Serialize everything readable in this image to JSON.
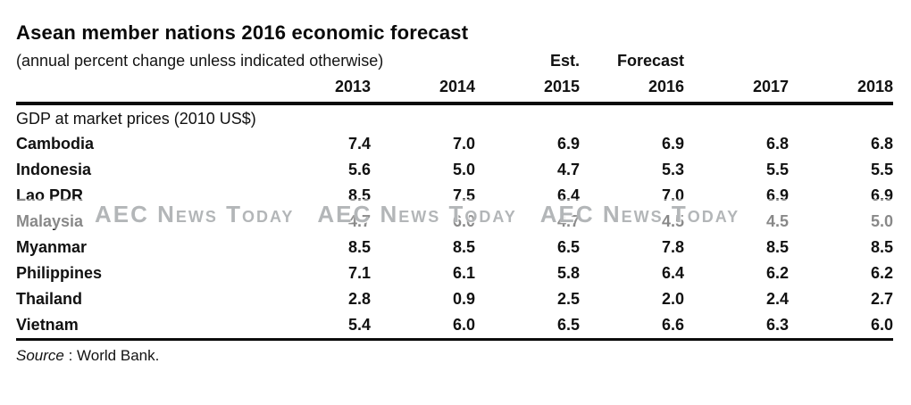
{
  "title": "Asean member nations 2016 economic forecast",
  "subtitle": "(annual percent change unless indicated otherwise)",
  "table": {
    "est_label": "Est.",
    "forecast_label": "Forecast",
    "years": [
      "2013",
      "2014",
      "2015",
      "2016",
      "2017",
      "2018"
    ],
    "section_label": "GDP at market prices (2010 US$)",
    "rows": [
      {
        "country": "Cambodia",
        "values": [
          "7.4",
          "7.0",
          "6.9",
          "6.9",
          "6.8",
          "6.8"
        ]
      },
      {
        "country": "Indonesia",
        "values": [
          "5.6",
          "5.0",
          "4.7",
          "5.3",
          "5.5",
          "5.5"
        ]
      },
      {
        "country": "Lao PDR",
        "values": [
          "8.5",
          "7.5",
          "6.4",
          "7.0",
          "6.9",
          "6.9"
        ]
      },
      {
        "country": "Malaysia",
        "values": [
          "4.7",
          "6.0",
          "4.7",
          "4.5",
          "4.5",
          "5.0"
        ]
      },
      {
        "country": "Myanmar",
        "values": [
          "8.5",
          "8.5",
          "6.5",
          "7.8",
          "8.5",
          "8.5"
        ]
      },
      {
        "country": "Philippines",
        "values": [
          "7.1",
          "6.1",
          "5.8",
          "6.4",
          "6.2",
          "6.2"
        ]
      },
      {
        "country": "Thailand",
        "values": [
          "2.8",
          "0.9",
          "2.5",
          "2.0",
          "2.4",
          "2.7"
        ]
      },
      {
        "country": "Vietnam",
        "values": [
          "5.4",
          "6.0",
          "6.5",
          "6.6",
          "6.3",
          "6.0"
        ]
      }
    ]
  },
  "source": {
    "label": "Source",
    "separator": " : ",
    "text": "World Bank."
  },
  "watermark": {
    "text": "AEC News Today",
    "color": "#b3b6b8"
  },
  "chart_data": {
    "type": "table",
    "title": "Asean member nations 2016 economic forecast",
    "subtitle": "(annual percent change unless indicated otherwise)",
    "section": "GDP at market prices (2010 US$)",
    "columns": [
      "2013",
      "2014",
      "2015 (Est.)",
      "2016 (Forecast)",
      "2017",
      "2018"
    ],
    "rows": [
      {
        "country": "Cambodia",
        "values": [
          7.4,
          7.0,
          6.9,
          6.9,
          6.8,
          6.8
        ]
      },
      {
        "country": "Indonesia",
        "values": [
          5.6,
          5.0,
          4.7,
          5.3,
          5.5,
          5.5
        ]
      },
      {
        "country": "Lao PDR",
        "values": [
          8.5,
          7.5,
          6.4,
          7.0,
          6.9,
          6.9
        ]
      },
      {
        "country": "Malaysia",
        "values": [
          4.7,
          6.0,
          4.7,
          4.5,
          4.5,
          5.0
        ]
      },
      {
        "country": "Myanmar",
        "values": [
          8.5,
          8.5,
          6.5,
          7.8,
          8.5,
          8.5
        ]
      },
      {
        "country": "Philippines",
        "values": [
          7.1,
          6.1,
          5.8,
          6.4,
          6.2,
          6.2
        ]
      },
      {
        "country": "Thailand",
        "values": [
          2.8,
          0.9,
          2.5,
          2.0,
          2.4,
          2.7
        ]
      },
      {
        "country": "Vietnam",
        "values": [
          5.4,
          6.0,
          6.5,
          6.6,
          6.3,
          6.0
        ]
      }
    ],
    "source": "World Bank."
  }
}
